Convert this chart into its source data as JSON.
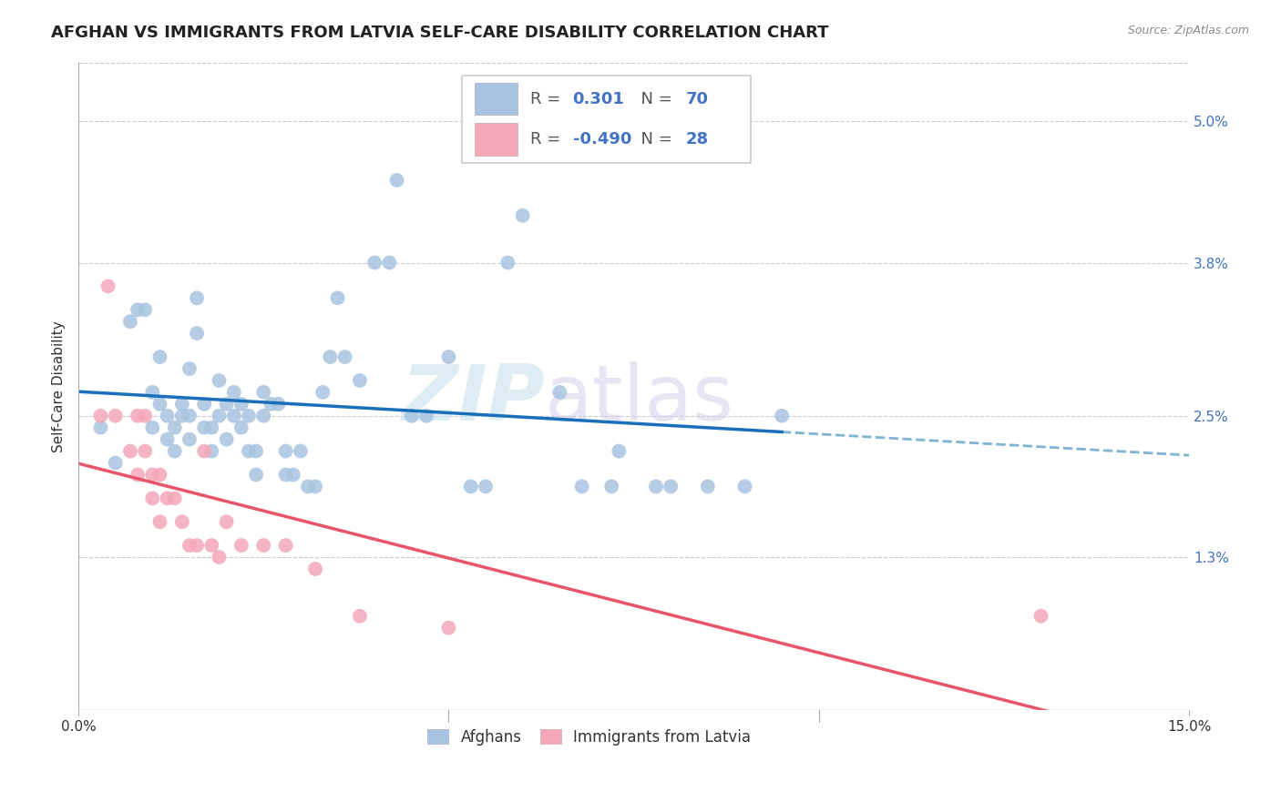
{
  "title": "AFGHAN VS IMMIGRANTS FROM LATVIA SELF-CARE DISABILITY CORRELATION CHART",
  "source": "Source: ZipAtlas.com",
  "ylabel_label": "Self-Care Disability",
  "xlim": [
    0.0,
    0.15
  ],
  "ylim": [
    0.0,
    0.055
  ],
  "ytick_positions": [
    0.013,
    0.025,
    0.038,
    0.05
  ],
  "ytick_labels": [
    "1.3%",
    "2.5%",
    "3.8%",
    "5.0%"
  ],
  "xtick_positions": [
    0.0,
    0.05,
    0.1,
    0.15
  ],
  "xtick_labels": [
    "0.0%",
    "",
    "",
    "15.0%"
  ],
  "blue_R": 0.301,
  "blue_N": 70,
  "pink_R": -0.49,
  "pink_N": 28,
  "blue_color": "#a8c4e0",
  "pink_color": "#f4a7b9",
  "blue_line_color": "#1a6fba",
  "pink_line_color": "#e8546a",
  "dashed_line_color": "#7fb3d3",
  "legend_label_blue": "Afghans",
  "legend_label_pink": "Immigrants from Latvia",
  "watermark_zip": "ZIP",
  "watermark_atlas": "atlas",
  "blue_scatter_x": [
    0.003,
    0.005,
    0.007,
    0.008,
    0.009,
    0.01,
    0.01,
    0.011,
    0.011,
    0.012,
    0.012,
    0.013,
    0.013,
    0.014,
    0.014,
    0.015,
    0.015,
    0.015,
    0.016,
    0.016,
    0.017,
    0.017,
    0.018,
    0.018,
    0.019,
    0.019,
    0.02,
    0.02,
    0.021,
    0.021,
    0.022,
    0.022,
    0.023,
    0.023,
    0.024,
    0.024,
    0.025,
    0.025,
    0.026,
    0.027,
    0.028,
    0.028,
    0.029,
    0.03,
    0.031,
    0.032,
    0.033,
    0.034,
    0.035,
    0.036,
    0.038,
    0.04,
    0.042,
    0.043,
    0.045,
    0.047,
    0.05,
    0.053,
    0.055,
    0.058,
    0.06,
    0.065,
    0.068,
    0.072,
    0.073,
    0.078,
    0.08,
    0.085,
    0.09,
    0.095
  ],
  "blue_scatter_y": [
    0.024,
    0.021,
    0.033,
    0.034,
    0.034,
    0.027,
    0.024,
    0.026,
    0.03,
    0.023,
    0.025,
    0.022,
    0.024,
    0.026,
    0.025,
    0.029,
    0.023,
    0.025,
    0.032,
    0.035,
    0.024,
    0.026,
    0.022,
    0.024,
    0.028,
    0.025,
    0.023,
    0.026,
    0.025,
    0.027,
    0.024,
    0.026,
    0.022,
    0.025,
    0.02,
    0.022,
    0.025,
    0.027,
    0.026,
    0.026,
    0.02,
    0.022,
    0.02,
    0.022,
    0.019,
    0.019,
    0.027,
    0.03,
    0.035,
    0.03,
    0.028,
    0.038,
    0.038,
    0.045,
    0.025,
    0.025,
    0.03,
    0.019,
    0.019,
    0.038,
    0.042,
    0.027,
    0.019,
    0.019,
    0.022,
    0.019,
    0.019,
    0.019,
    0.019,
    0.025
  ],
  "pink_scatter_x": [
    0.003,
    0.004,
    0.005,
    0.007,
    0.008,
    0.008,
    0.009,
    0.009,
    0.01,
    0.01,
    0.011,
    0.011,
    0.012,
    0.013,
    0.014,
    0.015,
    0.016,
    0.017,
    0.018,
    0.019,
    0.02,
    0.022,
    0.025,
    0.028,
    0.032,
    0.038,
    0.05,
    0.13
  ],
  "pink_scatter_y": [
    0.025,
    0.036,
    0.025,
    0.022,
    0.025,
    0.02,
    0.025,
    0.022,
    0.02,
    0.018,
    0.02,
    0.016,
    0.018,
    0.018,
    0.016,
    0.014,
    0.014,
    0.022,
    0.014,
    0.013,
    0.016,
    0.014,
    0.014,
    0.014,
    0.012,
    0.008,
    0.007,
    0.008
  ],
  "title_fontsize": 13,
  "axis_label_fontsize": 11,
  "tick_fontsize": 11
}
